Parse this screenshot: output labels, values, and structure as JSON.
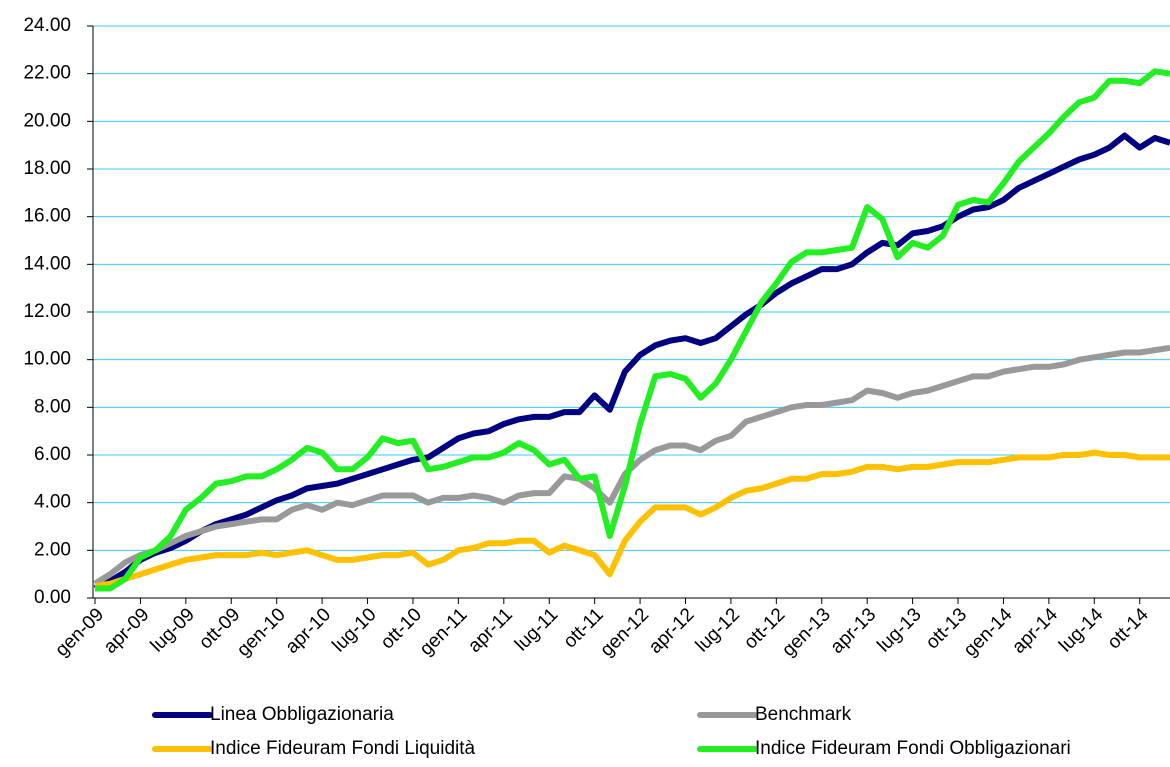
{
  "chart_data": {
    "type": "line",
    "categories": [
      "gen-09",
      null,
      null,
      "apr-09",
      null,
      null,
      "lug-09",
      null,
      null,
      "ott-09",
      null,
      null,
      "gen-10",
      null,
      null,
      "apr-10",
      null,
      null,
      "lug-10",
      null,
      null,
      "ott-10",
      null,
      null,
      "gen-11",
      null,
      null,
      "apr-11",
      null,
      null,
      "lug-11",
      null,
      null,
      "ott-11",
      null,
      null,
      "gen-12",
      null,
      null,
      "apr-12",
      null,
      null,
      "lug-12",
      null,
      null,
      "ott-12",
      null,
      null,
      "gen-13",
      null,
      null,
      "apr-13",
      null,
      null,
      "lug-13",
      null,
      null,
      "ott-13",
      null,
      null,
      "gen-14",
      null,
      null,
      "apr-14",
      null,
      null,
      "lug-14",
      null,
      null,
      "ott-14",
      null,
      null
    ],
    "series": [
      {
        "name": "Linea Obbligazionaria",
        "color": "#000080",
        "values": [
          0.4,
          0.7,
          1.1,
          1.6,
          1.9,
          2.1,
          2.4,
          2.8,
          3.1,
          3.3,
          3.5,
          3.8,
          4.1,
          4.3,
          4.6,
          4.7,
          4.8,
          5.0,
          5.2,
          5.4,
          5.6,
          5.8,
          5.9,
          6.3,
          6.7,
          6.9,
          7.0,
          7.3,
          7.5,
          7.6,
          7.6,
          7.8,
          7.8,
          8.5,
          7.9,
          9.5,
          10.2,
          10.6,
          10.8,
          10.9,
          10.7,
          10.9,
          11.4,
          11.9,
          12.3,
          12.8,
          13.2,
          13.5,
          13.8,
          13.8,
          14.0,
          14.5,
          14.9,
          14.8,
          15.3,
          15.4,
          15.6,
          16.0,
          16.3,
          16.4,
          16.7,
          17.2,
          17.5,
          17.8,
          18.1,
          18.4,
          18.6,
          18.9,
          19.4,
          18.9,
          19.3,
          19.1
        ]
      },
      {
        "name": "Benchmark",
        "color": "#999999",
        "values": [
          0.6,
          1.0,
          1.5,
          1.8,
          2.0,
          2.3,
          2.6,
          2.8,
          3.0,
          3.1,
          3.2,
          3.3,
          3.3,
          3.7,
          3.9,
          3.7,
          4.0,
          3.9,
          4.1,
          4.3,
          4.3,
          4.3,
          4.0,
          4.2,
          4.2,
          4.3,
          4.2,
          4.0,
          4.3,
          4.4,
          4.4,
          5.1,
          5.0,
          4.6,
          4.0,
          5.2,
          5.8,
          6.2,
          6.4,
          6.4,
          6.2,
          6.6,
          6.8,
          7.4,
          7.6,
          7.8,
          8.0,
          8.1,
          8.1,
          8.2,
          8.3,
          8.7,
          8.6,
          8.4,
          8.6,
          8.7,
          8.9,
          9.1,
          9.3,
          9.3,
          9.5,
          9.6,
          9.7,
          9.7,
          9.8,
          10.0,
          10.1,
          10.2,
          10.3,
          10.3,
          10.4,
          10.5
        ]
      },
      {
        "name": "Indice Fideuram Fondi Liquidità",
        "color": "#ffc000",
        "values": [
          0.5,
          0.6,
          0.8,
          1.0,
          1.2,
          1.4,
          1.6,
          1.7,
          1.8,
          1.8,
          1.8,
          1.9,
          1.8,
          1.9,
          2.0,
          1.8,
          1.6,
          1.6,
          1.7,
          1.8,
          1.8,
          1.9,
          1.4,
          1.6,
          2.0,
          2.1,
          2.3,
          2.3,
          2.4,
          2.4,
          1.9,
          2.2,
          2.0,
          1.8,
          1.0,
          2.4,
          3.2,
          3.8,
          3.8,
          3.8,
          3.5,
          3.8,
          4.2,
          4.5,
          4.6,
          4.8,
          5.0,
          5.0,
          5.2,
          5.2,
          5.3,
          5.5,
          5.5,
          5.4,
          5.5,
          5.5,
          5.6,
          5.7,
          5.7,
          5.7,
          5.8,
          5.9,
          5.9,
          5.9,
          6.0,
          6.0,
          6.1,
          6.0,
          6.0,
          5.9,
          5.9,
          5.9
        ]
      },
      {
        "name": "Indice Fideuram Fondi Obbligazionari",
        "color": "#22ee22",
        "values": [
          0.4,
          0.4,
          0.8,
          1.7,
          2.0,
          2.6,
          3.7,
          4.2,
          4.8,
          4.9,
          5.1,
          5.1,
          5.4,
          5.8,
          6.3,
          6.1,
          5.4,
          5.4,
          5.9,
          6.7,
          6.5,
          6.6,
          5.4,
          5.5,
          5.7,
          5.9,
          5.9,
          6.1,
          6.5,
          6.2,
          5.6,
          5.8,
          5.0,
          5.1,
          2.6,
          4.7,
          7.3,
          9.3,
          9.4,
          9.2,
          8.4,
          9.0,
          10.0,
          11.2,
          12.4,
          13.2,
          14.1,
          14.5,
          14.5,
          14.6,
          14.7,
          16.4,
          15.9,
          14.3,
          14.9,
          14.7,
          15.2,
          16.5,
          16.7,
          16.6,
          17.4,
          18.3,
          18.9,
          19.5,
          20.2,
          20.8,
          21.0,
          21.7,
          21.7,
          21.6,
          22.1,
          22.0
        ]
      }
    ],
    "ylim": [
      0,
      24
    ],
    "yticks": [
      {
        "value": 0,
        "label": "0.00"
      },
      {
        "value": 2,
        "label": "2.00"
      },
      {
        "value": 4,
        "label": "4.00"
      },
      {
        "value": 6,
        "label": "6.00"
      },
      {
        "value": 8,
        "label": "8.00"
      },
      {
        "value": 10,
        "label": "10.00"
      },
      {
        "value": 12,
        "label": "12.00"
      },
      {
        "value": 14,
        "label": "14.00"
      },
      {
        "value": 16,
        "label": "16.00"
      },
      {
        "value": 18,
        "label": "18.00"
      },
      {
        "value": 20,
        "label": "20.00"
      },
      {
        "value": 22,
        "label": "22.00"
      },
      {
        "value": 24,
        "label": "24.00"
      }
    ],
    "grid": true
  }
}
